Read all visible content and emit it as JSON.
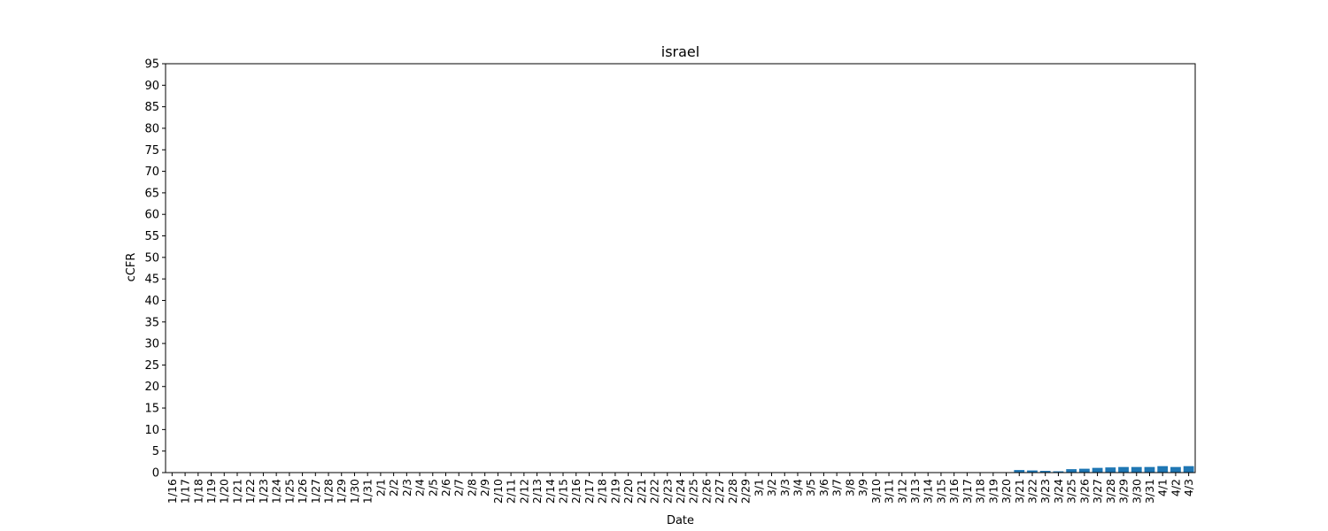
{
  "chart_data": {
    "type": "bar",
    "title": "israel",
    "xlabel": "Date",
    "ylabel": "cCFR",
    "ylim": [
      0,
      95
    ],
    "yticks": [
      0,
      5,
      10,
      15,
      20,
      25,
      30,
      35,
      40,
      45,
      50,
      55,
      60,
      65,
      70,
      75,
      80,
      85,
      90,
      95
    ],
    "grid": false,
    "bar_color": "#1f77b4",
    "categories": [
      "1/16",
      "1/17",
      "1/18",
      "1/19",
      "1/20",
      "1/21",
      "1/22",
      "1/23",
      "1/24",
      "1/25",
      "1/26",
      "1/27",
      "1/28",
      "1/29",
      "1/30",
      "1/31",
      "2/1",
      "2/2",
      "2/3",
      "2/4",
      "2/5",
      "2/6",
      "2/7",
      "2/8",
      "2/9",
      "2/10",
      "2/11",
      "2/12",
      "2/13",
      "2/14",
      "2/15",
      "2/16",
      "2/17",
      "2/18",
      "2/19",
      "2/20",
      "2/21",
      "2/22",
      "2/23",
      "2/24",
      "2/25",
      "2/26",
      "2/27",
      "2/28",
      "2/29",
      "3/1",
      "3/2",
      "3/3",
      "3/4",
      "3/5",
      "3/6",
      "3/7",
      "3/8",
      "3/9",
      "3/10",
      "3/11",
      "3/12",
      "3/13",
      "3/14",
      "3/15",
      "3/16",
      "3/17",
      "3/18",
      "3/19",
      "3/20",
      "3/21",
      "3/22",
      "3/23",
      "3/24",
      "3/25",
      "3/26",
      "3/27",
      "3/28",
      "3/29",
      "3/30",
      "3/31",
      "4/1",
      "4/2",
      "4/3"
    ],
    "values": [
      0,
      0,
      0,
      0,
      0,
      0,
      0,
      0,
      0,
      0,
      0,
      0,
      0,
      0,
      0,
      0,
      0,
      0,
      0,
      0,
      0,
      0,
      0,
      0,
      0,
      0,
      0,
      0,
      0,
      0,
      0,
      0,
      0,
      0,
      0,
      0,
      0,
      0,
      0,
      0,
      0,
      0,
      0,
      0,
      0,
      0,
      0,
      0,
      0,
      0,
      0,
      0,
      0,
      0,
      0,
      0,
      0,
      0,
      0,
      0,
      0,
      0,
      0,
      0,
      0,
      0.6,
      0.5,
      0.4,
      0.3,
      0.8,
      0.9,
      1.1,
      1.2,
      1.3,
      1.3,
      1.3,
      1.5,
      1.3,
      1.5
    ]
  }
}
